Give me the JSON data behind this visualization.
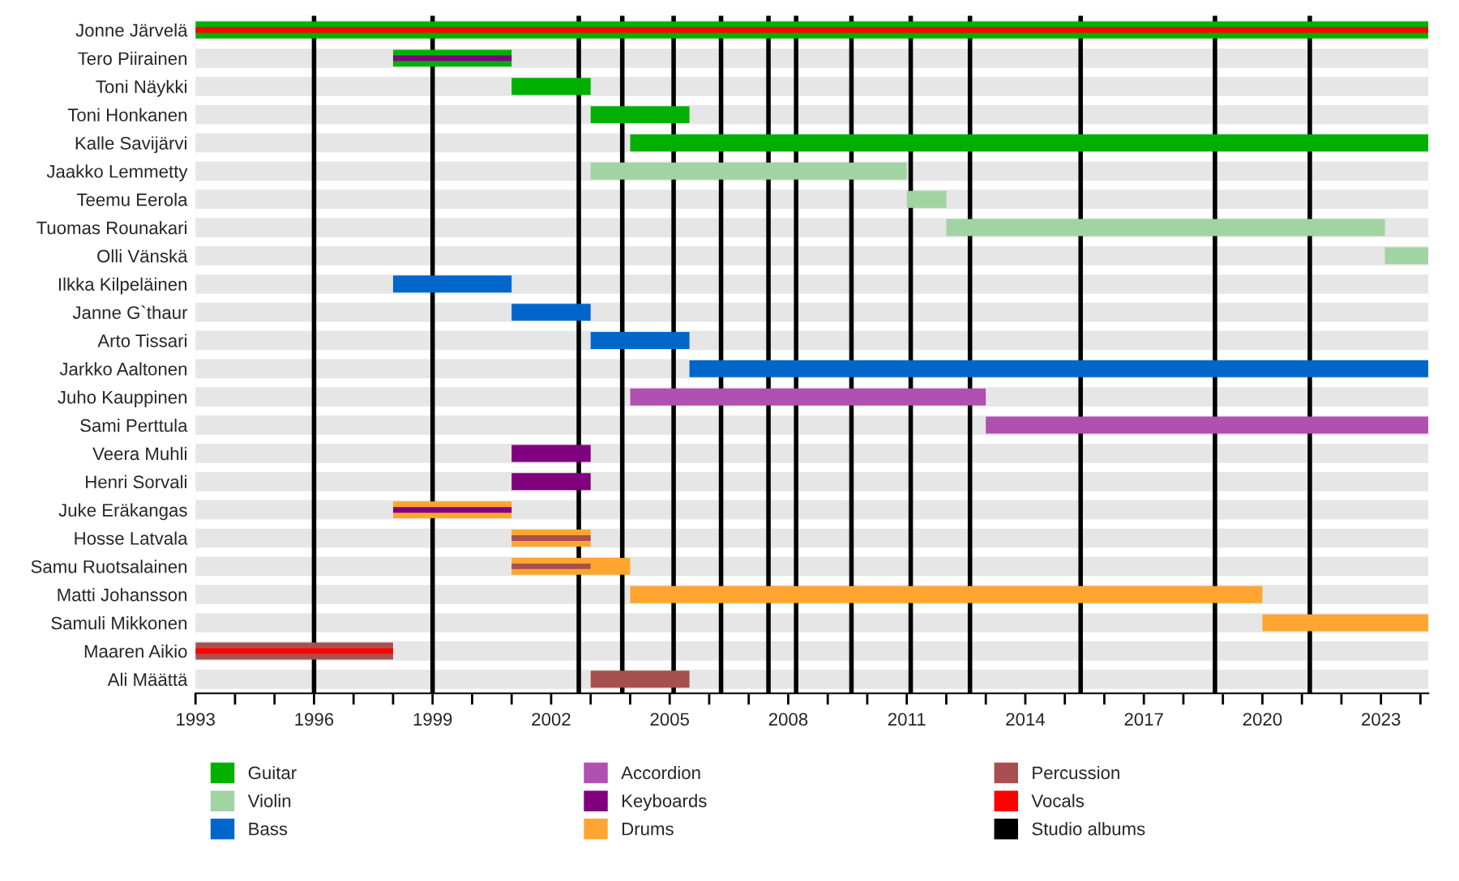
{
  "chart_data": {
    "type": "bar",
    "orientation": "horizontal",
    "categories": [
      "Jonne Järvelä",
      "Tero Piirainen",
      "Toni Näykki",
      "Toni Honkanen",
      "Kalle Savijärvi",
      "Jaakko Lemmetty",
      "Teemu Eerola",
      "Tuomas Rounakari",
      "Olli Vänskä",
      "Ilkka Kilpeläinen",
      "Janne G`thaur",
      "Arto Tissari",
      "Jarkko Aaltonen",
      "Juho Kauppinen",
      "Sami Perttula",
      "Veera Muhli",
      "Henri Sorvali",
      "Juke Eräkangas",
      "Hosse Latvala",
      "Samu Ruotsalainen",
      "Matti Johansson",
      "Samuli Mikkonen",
      "Maaren Aikio",
      "Ali Määttä"
    ],
    "series": [
      {
        "name": "Guitar",
        "color": "#00b000",
        "base": [
          1993,
          1998,
          2001,
          2003,
          2004,
          null,
          null,
          null,
          null,
          null,
          null,
          null,
          null,
          null,
          null,
          null,
          null,
          null,
          null,
          null,
          null,
          null,
          null,
          null
        ],
        "values": [
          31.2,
          3,
          2,
          2.5,
          20.2,
          null,
          null,
          null,
          null,
          null,
          null,
          null,
          null,
          null,
          null,
          null,
          null,
          null,
          null,
          null,
          null,
          null,
          null,
          null
        ]
      },
      {
        "name": "Violin",
        "color": "#a2d3a2",
        "base": [
          null,
          null,
          null,
          null,
          null,
          2003,
          2011,
          2012,
          2023.1,
          null,
          null,
          null,
          null,
          null,
          null,
          null,
          null,
          null,
          null,
          null,
          null,
          null,
          null,
          null
        ],
        "values": [
          null,
          null,
          null,
          null,
          null,
          8,
          1,
          11.1,
          1.1,
          null,
          null,
          null,
          null,
          null,
          null,
          null,
          null,
          null,
          null,
          null,
          null,
          null,
          null,
          null
        ]
      },
      {
        "name": "Bass",
        "color": "#0066cc",
        "base": [
          null,
          null,
          null,
          null,
          null,
          null,
          null,
          null,
          null,
          1998,
          2001,
          2003,
          2005.5,
          null,
          null,
          null,
          null,
          null,
          null,
          null,
          null,
          null,
          null,
          null
        ],
        "values": [
          null,
          null,
          null,
          null,
          null,
          null,
          null,
          null,
          null,
          3,
          2,
          2.5,
          18.7,
          null,
          null,
          null,
          null,
          null,
          null,
          null,
          null,
          null,
          null,
          null
        ]
      },
      {
        "name": "Accordion",
        "color": "#b050b0",
        "base": [
          null,
          null,
          null,
          null,
          null,
          null,
          null,
          null,
          null,
          null,
          null,
          null,
          null,
          2004,
          2013,
          null,
          null,
          null,
          null,
          null,
          null,
          null,
          null,
          null
        ],
        "values": [
          null,
          null,
          null,
          null,
          null,
          null,
          null,
          null,
          null,
          null,
          null,
          null,
          null,
          9,
          11.2,
          null,
          null,
          null,
          null,
          null,
          null,
          null,
          null,
          null
        ]
      },
      {
        "name": "Keyboards",
        "color": "#800080",
        "base": [
          null,
          null,
          null,
          null,
          null,
          null,
          null,
          null,
          null,
          null,
          null,
          null,
          null,
          null,
          null,
          2001,
          2001,
          null,
          null,
          null,
          null,
          null,
          null,
          null
        ],
        "values": [
          null,
          null,
          null,
          null,
          null,
          null,
          null,
          null,
          null,
          null,
          null,
          null,
          null,
          null,
          null,
          2,
          2,
          null,
          null,
          null,
          null,
          null,
          null,
          null
        ]
      },
      {
        "name": "Drums",
        "color": "#ffa530",
        "base": [
          null,
          null,
          null,
          null,
          null,
          null,
          null,
          null,
          null,
          null,
          null,
          null,
          null,
          null,
          null,
          null,
          null,
          1998,
          2001,
          2001,
          2004,
          2020,
          null,
          null
        ],
        "values": [
          null,
          null,
          null,
          null,
          null,
          null,
          null,
          null,
          null,
          null,
          null,
          null,
          null,
          null,
          null,
          null,
          null,
          3,
          2,
          3,
          16,
          4.2,
          null,
          null
        ]
      },
      {
        "name": "Percussion",
        "color": "#a85050",
        "base": [
          null,
          null,
          null,
          null,
          null,
          null,
          null,
          null,
          null,
          null,
          null,
          null,
          null,
          null,
          null,
          null,
          null,
          null,
          null,
          null,
          null,
          null,
          1993,
          2003
        ],
        "values": [
          null,
          null,
          null,
          null,
          null,
          null,
          null,
          null,
          null,
          null,
          null,
          null,
          null,
          null,
          null,
          null,
          null,
          null,
          null,
          null,
          null,
          null,
          5,
          2.5
        ]
      },
      {
        "name": "Vocals",
        "color": "#ff0000",
        "base": [
          1993,
          null,
          null,
          null,
          null,
          null,
          null,
          null,
          null,
          null,
          null,
          null,
          null,
          null,
          null,
          null,
          null,
          null,
          null,
          null,
          null,
          null,
          1993,
          null
        ],
        "values": [
          31.2,
          null,
          null,
          null,
          null,
          null,
          null,
          null,
          null,
          null,
          null,
          null,
          null,
          null,
          null,
          null,
          null,
          null,
          null,
          null,
          null,
          null,
          5,
          null
        ]
      },
      {
        "color": "#800080",
        "base": [
          null,
          1998,
          null,
          null,
          null,
          null,
          null,
          null,
          null,
          null,
          null,
          null,
          null,
          null,
          null,
          null,
          null,
          1998,
          null,
          null,
          null,
          null,
          null,
          null
        ],
        "values": [
          null,
          3,
          null,
          null,
          null,
          null,
          null,
          null,
          null,
          null,
          null,
          null,
          null,
          null,
          null,
          null,
          null,
          3,
          null,
          null,
          null,
          null,
          null,
          null
        ]
      },
      {
        "color": "#a85050",
        "base": [
          null,
          null,
          null,
          null,
          null,
          null,
          null,
          null,
          null,
          null,
          null,
          null,
          null,
          null,
          null,
          null,
          null,
          null,
          2001,
          2001,
          null,
          null,
          null,
          null
        ],
        "values": [
          null,
          null,
          null,
          null,
          null,
          null,
          null,
          null,
          null,
          null,
          null,
          null,
          null,
          null,
          null,
          null,
          null,
          null,
          2,
          2,
          null,
          null,
          null,
          null
        ]
      }
    ],
    "ref_lines": [
      {
        "axis": "x",
        "value": 1996,
        "color": "#000000",
        "label": "Studio albums"
      },
      {
        "axis": "x",
        "value": 1999,
        "color": "#000000"
      },
      {
        "axis": "x",
        "value": 2002.7,
        "color": "#000000"
      },
      {
        "axis": "x",
        "value": 2003.8,
        "color": "#000000"
      },
      {
        "axis": "x",
        "value": 2005.1,
        "color": "#000000"
      },
      {
        "axis": "x",
        "value": 2006.3,
        "color": "#000000"
      },
      {
        "axis": "x",
        "value": 2007.5,
        "color": "#000000"
      },
      {
        "axis": "x",
        "value": 2008.2,
        "color": "#000000"
      },
      {
        "axis": "x",
        "value": 2009.6,
        "color": "#000000"
      },
      {
        "axis": "x",
        "value": 2011.1,
        "color": "#000000"
      },
      {
        "axis": "x",
        "value": 2012.6,
        "color": "#000000"
      },
      {
        "axis": "x",
        "value": 2015.4,
        "color": "#000000"
      },
      {
        "axis": "x",
        "value": 2018.8,
        "color": "#000000"
      },
      {
        "axis": "x",
        "value": 2021.2,
        "color": "#000000"
      }
    ],
    "xlim": [
      1993,
      2024.2
    ],
    "xticks": [
      1993,
      {
        "value": 1994,
        "label": null
      },
      {
        "value": 1995,
        "label": null
      },
      1996,
      {
        "value": 1997,
        "label": null
      },
      {
        "value": 1998,
        "label": null
      },
      1999,
      {
        "value": 2000,
        "label": null
      },
      {
        "value": 2001,
        "label": null
      },
      2002,
      {
        "value": 2003,
        "label": null
      },
      {
        "value": 2004,
        "label": null
      },
      2005,
      {
        "value": 2006,
        "label": null
      },
      {
        "value": 2007,
        "label": null
      },
      2008,
      {
        "value": 2009,
        "label": null
      },
      {
        "value": 2010,
        "label": null
      },
      2011,
      {
        "value": 2012,
        "label": null
      },
      {
        "value": 2013,
        "label": null
      },
      2014,
      {
        "value": 2015,
        "label": null
      },
      {
        "value": 2016,
        "label": null
      },
      2017,
      {
        "value": 2018,
        "label": null
      },
      {
        "value": 2019,
        "label": null
      },
      2020,
      {
        "value": 2021,
        "label": null
      },
      {
        "value": 2022,
        "label": null
      },
      2023,
      {
        "value": 2024,
        "label": null
      }
    ],
    "grid": false,
    "legend": "bottom"
  }
}
